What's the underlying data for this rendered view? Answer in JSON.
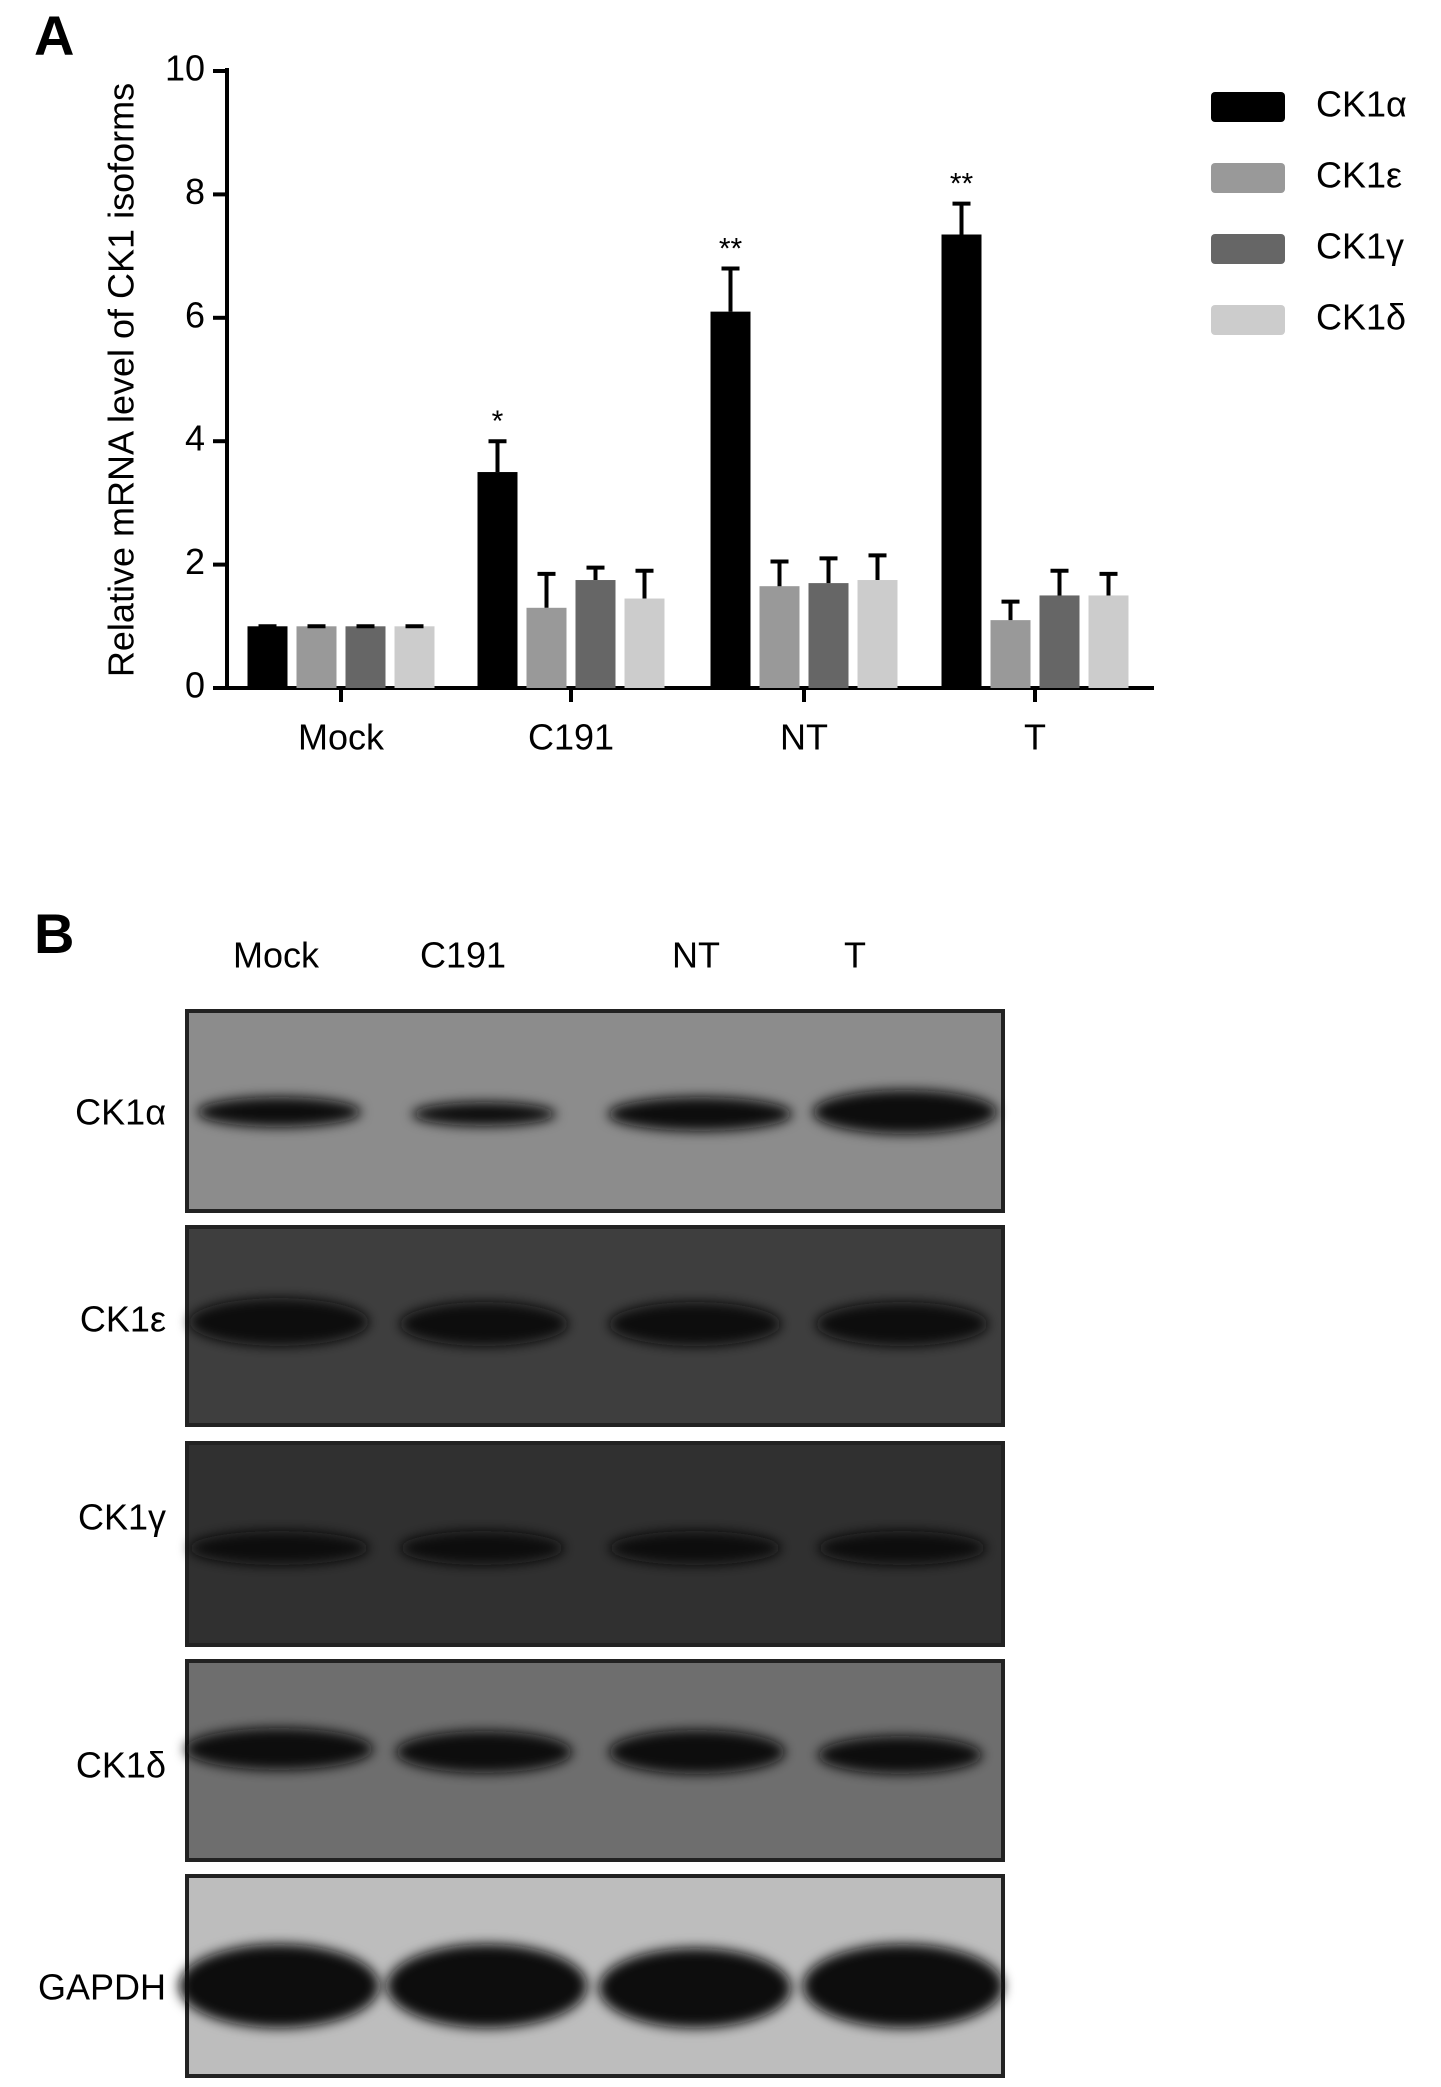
{
  "panels": [
    "A",
    "B"
  ],
  "chart_data": {
    "type": "bar",
    "y_label": "Relative mRNA level of CK1 isoforms",
    "categories": [
      "Mock",
      "C191",
      "NT",
      "T"
    ],
    "series": [
      {
        "name": "CK1α",
        "color": "#000000",
        "values": [
          1,
          3.5,
          6.1,
          7.35
        ],
        "errors": [
          0,
          0.5,
          0.7,
          0.5
        ],
        "significance": [
          null,
          "*",
          "**",
          "**"
        ]
      },
      {
        "name": "CK1ε",
        "color": "#999999",
        "values": [
          1,
          1.3,
          1.65,
          1.1
        ],
        "errors": [
          0,
          0.55,
          0.4,
          0.3
        ]
      },
      {
        "name": "CK1γ",
        "color": "#666666",
        "values": [
          1,
          1.75,
          1.7,
          1.5
        ],
        "errors": [
          0,
          0.2,
          0.4,
          0.4
        ]
      },
      {
        "name": "CK1δ",
        "color": "#cccccc",
        "values": [
          1,
          1.45,
          1.75,
          1.5
        ],
        "errors": [
          0,
          0.45,
          0.4,
          0.35
        ]
      }
    ],
    "ylim": [
      0,
      10
    ],
    "yticks": [
      0,
      2,
      4,
      6,
      8,
      10
    ],
    "legend": "right"
  },
  "blot": {
    "lanes": [
      "Mock",
      "C191",
      "NT",
      "T"
    ],
    "rows": [
      "CK1α",
      "CK1ε",
      "CK1γ",
      "CK1δ",
      "GAPDH"
    ]
  }
}
